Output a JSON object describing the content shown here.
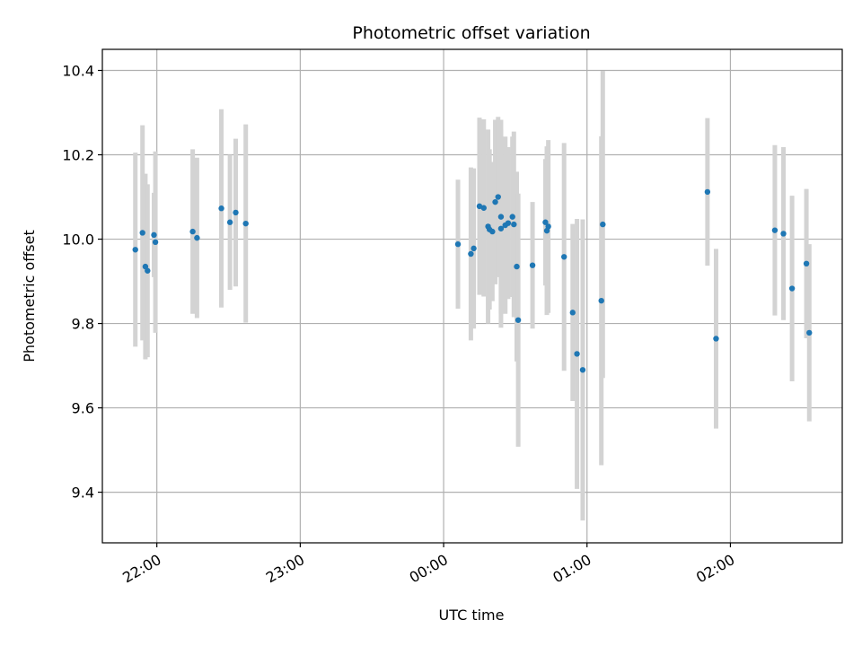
{
  "chart_data": {
    "type": "scatter",
    "title": "Photometric offset variation",
    "xlabel": "UTC time",
    "ylabel": "Photometric offset",
    "x_axis": {
      "unit": "hours since 00:00 UTC",
      "range": [
        -2.38,
        2.78
      ],
      "ticks": [
        -2,
        -1,
        0,
        1,
        2
      ],
      "tick_labels": [
        "22:00",
        "23:00",
        "00:00",
        "01:00",
        "02:00"
      ]
    },
    "y_axis": {
      "range": [
        9.28,
        10.45
      ],
      "ticks": [
        9.4,
        9.6,
        9.8,
        10.0,
        10.2,
        10.4
      ],
      "tick_labels": [
        "9.4",
        "9.6",
        "9.8",
        "10.0",
        "10.2",
        "10.4"
      ]
    },
    "grid": true,
    "colors": {
      "points": "#1f77b4",
      "errorbars": "#d3d3d3",
      "grid": "#b0b0b0",
      "axes": "#000000"
    },
    "points": [
      {
        "x": -2.15,
        "y": 9.975,
        "err": 0.23
      },
      {
        "x": -2.1,
        "y": 10.015,
        "err": 0.255
      },
      {
        "x": -2.08,
        "y": 9.935,
        "err": 0.22
      },
      {
        "x": -2.065,
        "y": 9.925,
        "err": 0.205
      },
      {
        "x": -2.02,
        "y": 10.01,
        "err": 0.1
      },
      {
        "x": -2.01,
        "y": 9.993,
        "err": 0.215
      },
      {
        "x": -1.75,
        "y": 10.018,
        "err": 0.195
      },
      {
        "x": -1.72,
        "y": 10.003,
        "err": 0.19
      },
      {
        "x": -1.55,
        "y": 10.073,
        "err": 0.235
      },
      {
        "x": -1.49,
        "y": 10.04,
        "err": 0.16
      },
      {
        "x": -1.45,
        "y": 10.063,
        "err": 0.175
      },
      {
        "x": -1.38,
        "y": 10.037,
        "err": 0.235
      },
      {
        "x": 0.1,
        "y": 9.988,
        "err": 0.153
      },
      {
        "x": 0.19,
        "y": 9.965,
        "err": 0.205
      },
      {
        "x": 0.21,
        "y": 9.978,
        "err": 0.19
      },
      {
        "x": 0.25,
        "y": 10.078,
        "err": 0.21
      },
      {
        "x": 0.28,
        "y": 10.074,
        "err": 0.21
      },
      {
        "x": 0.31,
        "y": 10.03,
        "err": 0.23
      },
      {
        "x": 0.32,
        "y": 10.023,
        "err": 0.19
      },
      {
        "x": 0.34,
        "y": 10.018,
        "err": 0.165
      },
      {
        "x": 0.36,
        "y": 10.088,
        "err": 0.195
      },
      {
        "x": 0.38,
        "y": 10.1,
        "err": 0.19
      },
      {
        "x": 0.4,
        "y": 10.025,
        "err": 0.235
      },
      {
        "x": 0.4,
        "y": 10.053,
        "err": 0.23
      },
      {
        "x": 0.43,
        "y": 10.033,
        "err": 0.21
      },
      {
        "x": 0.45,
        "y": 10.038,
        "err": 0.18
      },
      {
        "x": 0.48,
        "y": 10.053,
        "err": 0.19
      },
      {
        "x": 0.49,
        "y": 10.035,
        "err": 0.22
      },
      {
        "x": 0.51,
        "y": 9.935,
        "err": 0.225
      },
      {
        "x": 0.52,
        "y": 9.808,
        "err": 0.3
      },
      {
        "x": 0.62,
        "y": 9.938,
        "err": 0.15
      },
      {
        "x": 0.71,
        "y": 10.04,
        "err": 0.15
      },
      {
        "x": 0.72,
        "y": 10.02,
        "err": 0.2
      },
      {
        "x": 0.73,
        "y": 10.03,
        "err": 0.205
      },
      {
        "x": 0.84,
        "y": 9.958,
        "err": 0.27
      },
      {
        "x": 0.9,
        "y": 9.826,
        "err": 0.21
      },
      {
        "x": 0.93,
        "y": 9.728,
        "err": 0.32
      },
      {
        "x": 0.97,
        "y": 9.69,
        "err": 0.357
      },
      {
        "x": 1.1,
        "y": 9.854,
        "err": 0.39
      },
      {
        "x": 1.11,
        "y": 10.035,
        "err": 0.364
      },
      {
        "x": 1.84,
        "y": 10.112,
        "err": 0.175
      },
      {
        "x": 1.9,
        "y": 9.764,
        "err": 0.213
      },
      {
        "x": 2.31,
        "y": 10.021,
        "err": 0.202
      },
      {
        "x": 2.37,
        "y": 10.013,
        "err": 0.205
      },
      {
        "x": 2.43,
        "y": 9.883,
        "err": 0.22
      },
      {
        "x": 2.53,
        "y": 9.942,
        "err": 0.177
      },
      {
        "x": 2.55,
        "y": 9.778,
        "err": 0.21
      }
    ]
  }
}
